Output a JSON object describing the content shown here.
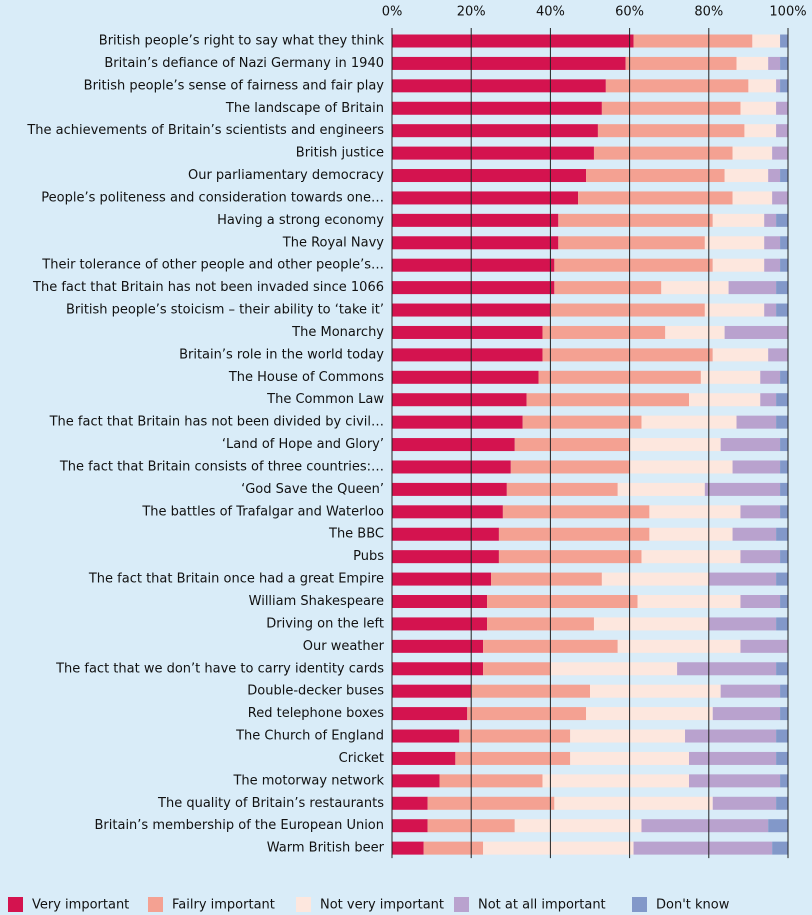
{
  "chart_data": {
    "type": "stacked_barh",
    "categories": [
      "British people’s right to say what they think",
      "Britain’s defiance of Nazi Germany in 1940",
      "British people’s sense of fairness and fair play",
      "The landscape of Britain",
      "The achievements of Britain’s scientists and engineers",
      "British justice",
      "Our parliamentary democracy",
      "People’s politeness and consideration towards one…",
      "Having a strong economy",
      "The Royal Navy",
      "Their tolerance of other people and other people’s…",
      "The fact that Britain has not been invaded since 1066",
      "British people’s stoicism – their ability to ‘take it’",
      "The Monarchy",
      "Britain’s role in the world today",
      "The House of Commons",
      "The Common Law",
      "The fact that Britain has not been divided by civil…",
      "‘Land of Hope and Glory’",
      "The fact that Britain consists of three countries:…",
      "‘God Save the Queen’",
      "The battles of Trafalgar and Waterloo",
      "The BBC",
      "Pubs",
      "The fact that Britain once had a great Empire",
      "William Shakespeare",
      "Driving on the left",
      "Our weather",
      "The fact that we don’t have to carry identity cards",
      "Double-decker buses",
      "Red telephone boxes",
      "The Church of England",
      "Cricket",
      "The motorway network",
      "The quality of Britain’s restaurants",
      "Britain’s membership of the European Union",
      "Warm British beer"
    ],
    "series": [
      {
        "name": "Very important",
        "color": "#d4134f",
        "values": [
          61,
          59,
          54,
          53,
          52,
          51,
          49,
          47,
          42,
          42,
          41,
          41,
          40,
          38,
          38,
          37,
          34,
          33,
          31,
          30,
          29,
          28,
          27,
          27,
          25,
          24,
          24,
          23,
          23,
          20,
          19,
          17,
          16,
          12,
          9,
          9,
          8
        ]
      },
      {
        "name": "Failry important",
        "color": "#f4a192",
        "values": [
          30,
          28,
          36,
          35,
          37,
          35,
          35,
          39,
          39,
          37,
          40,
          27,
          39,
          31,
          43,
          41,
          41,
          30,
          29,
          30,
          28,
          37,
          38,
          36,
          28,
          38,
          27,
          34,
          17,
          30,
          30,
          28,
          29,
          26,
          32,
          22,
          15
        ]
      },
      {
        "name": "Not very important",
        "color": "#fde7de",
        "values": [
          7,
          8,
          7,
          9,
          8,
          10,
          11,
          10,
          13,
          15,
          13,
          17,
          15,
          15,
          14,
          15,
          18,
          24,
          23,
          26,
          22,
          23,
          21,
          25,
          27,
          26,
          29,
          31,
          32,
          33,
          32,
          29,
          30,
          37,
          40,
          32,
          38
        ]
      },
      {
        "name": "Not at all important",
        "color": "#b9a2ce",
        "values": [
          0,
          3,
          1,
          3,
          3,
          4,
          3,
          4,
          3,
          4,
          4,
          12,
          3,
          16,
          5,
          5,
          4,
          10,
          15,
          12,
          19,
          10,
          11,
          10,
          17,
          10,
          17,
          12,
          25,
          15,
          17,
          23,
          22,
          23,
          16,
          32,
          35
        ]
      },
      {
        "name": "Don't know",
        "color": "#8298c9",
        "values": [
          2,
          2,
          2,
          0,
          0,
          0,
          2,
          0,
          3,
          2,
          2,
          3,
          3,
          0,
          0,
          2,
          3,
          3,
          2,
          2,
          2,
          2,
          3,
          2,
          3,
          2,
          3,
          0,
          3,
          2,
          2,
          3,
          3,
          2,
          3,
          5,
          4
        ]
      }
    ],
    "xlim": [
      0,
      100
    ],
    "xticks": [
      {
        "value": 0,
        "label": "0%"
      },
      {
        "value": 20,
        "label": "20%"
      },
      {
        "value": 40,
        "label": "40%"
      },
      {
        "value": 60,
        "label": "60%"
      },
      {
        "value": 80,
        "label": "80%"
      },
      {
        "value": 100,
        "label": "100%"
      }
    ],
    "grid": true,
    "legend": "bottom"
  }
}
